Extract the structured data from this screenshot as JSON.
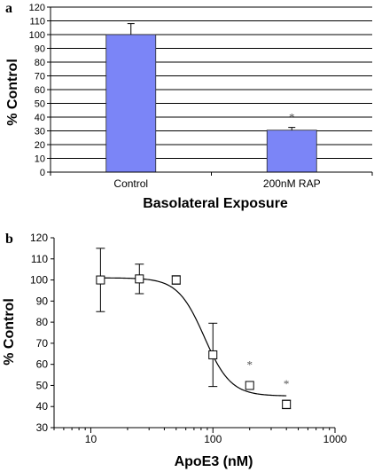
{
  "chart_data": [
    {
      "type": "bar",
      "panel_label": "a",
      "categories": [
        "Control",
        "200nM RAP"
      ],
      "values": [
        100,
        30.5
      ],
      "errors": [
        8,
        2
      ],
      "annotations": [
        "",
        "*"
      ],
      "xlabel": "Basolateral Exposure",
      "ylabel": "% Control",
      "ylim": [
        0,
        120
      ],
      "yticks": [
        0,
        10,
        20,
        30,
        40,
        50,
        60,
        70,
        80,
        90,
        100,
        110,
        120
      ],
      "grid": true,
      "bar_color": "#7b85f7"
    },
    {
      "type": "scatter",
      "panel_label": "b",
      "x_scale": "log",
      "x": [
        12,
        25,
        50,
        100,
        200,
        400
      ],
      "y": [
        100,
        100.5,
        100,
        64.5,
        50,
        41
      ],
      "errors": [
        15,
        7,
        2,
        15,
        0,
        2
      ],
      "annotations": [
        "",
        "",
        "",
        "",
        "*",
        "*"
      ],
      "fit_curve": {
        "type": "sigmoid",
        "top": 101,
        "bottom": 45,
        "ec50": 85,
        "hill": 4
      },
      "xlabel": "ApoE3 (nM)",
      "ylabel": "% Control",
      "xlim": [
        5,
        1000
      ],
      "ylim": [
        30,
        120
      ],
      "xticks": [
        10,
        100,
        1000
      ],
      "yticks": [
        30,
        40,
        50,
        60,
        70,
        80,
        90,
        100,
        110,
        120
      ],
      "grid": false
    }
  ]
}
